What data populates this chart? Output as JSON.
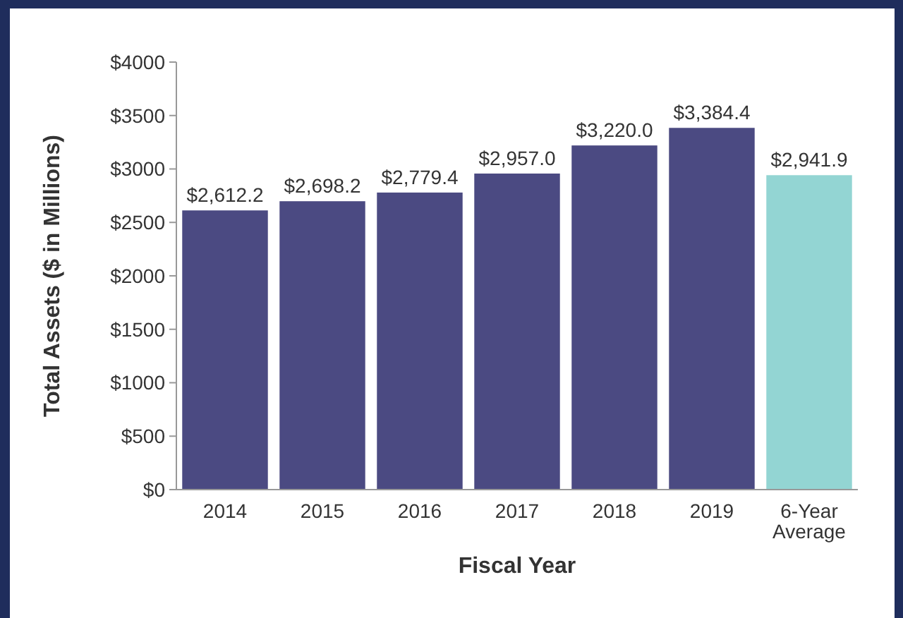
{
  "chart_data": {
    "type": "bar",
    "xlabel": "Fiscal Year",
    "ylabel": "Total Assets ($ in Millions)",
    "categories": [
      "2014",
      "2015",
      "2016",
      "2017",
      "2018",
      "2019",
      "6-Year Average"
    ],
    "values": [
      2612.2,
      2698.2,
      2779.4,
      2957.0,
      3220.0,
      3384.4,
      2941.9
    ],
    "colors": [
      "#4b4a82",
      "#4b4a82",
      "#4b4a82",
      "#4b4a82",
      "#4b4a82",
      "#4b4a82",
      "#93d5d3"
    ],
    "value_labels": [
      "$2,612.2",
      "$2,698.2",
      "$2,779.4",
      "$2,957.0",
      "$3,220.0",
      "$3,384.4",
      "$2,941.9"
    ],
    "ylim": [
      0,
      4000
    ],
    "yticks": [
      {
        "value": 0,
        "label": "$0"
      },
      {
        "value": 500,
        "label": "$500"
      },
      {
        "value": 1000,
        "label": "$1000"
      },
      {
        "value": 1500,
        "label": "$1500"
      },
      {
        "value": 2000,
        "label": "$2000"
      },
      {
        "value": 2500,
        "label": "$2500"
      },
      {
        "value": 3000,
        "label": "$3000"
      },
      {
        "value": 3500,
        "label": "$3500"
      },
      {
        "value": 4000,
        "label": "$4000"
      }
    ],
    "grid": false
  }
}
